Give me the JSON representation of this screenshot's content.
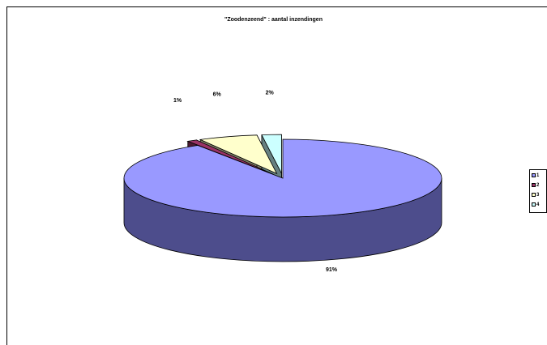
{
  "chart_data": {
    "type": "pie",
    "style": "3d-exploded",
    "title": "\"Zoodenzeend\" : aantal inzendingen",
    "slices": [
      {
        "label": "1",
        "value": 91,
        "data_label": "91%",
        "color": "#9999ff",
        "side_color": "#4d4d8c"
      },
      {
        "label": "2",
        "value": 1,
        "data_label": "1%",
        "color": "#993366",
        "side_color": "#4d1a33"
      },
      {
        "label": "3",
        "value": 6,
        "data_label": "6%",
        "color": "#ffffcc",
        "side_color": "#808066"
      },
      {
        "label": "4",
        "value": 2,
        "data_label": "2%",
        "color": "#ccffff",
        "side_color": "#668080"
      }
    ],
    "legend": {
      "position": "right"
    }
  }
}
